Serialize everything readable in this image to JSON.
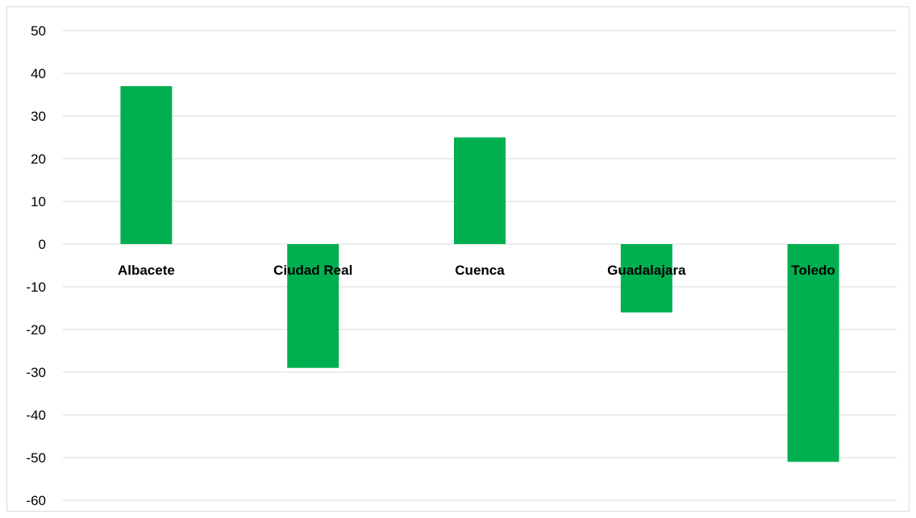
{
  "chart_data": {
    "type": "bar",
    "title": "",
    "xlabel": "",
    "ylabel": "",
    "categories": [
      "Albacete",
      "Ciudad Real",
      "Cuenca",
      "Guadalajara",
      "Toledo"
    ],
    "series": [
      {
        "values": [
          37,
          -29,
          25,
          -16,
          -51
        ],
        "color": "#00b050"
      }
    ],
    "ylim": [
      -60,
      50
    ],
    "yticks": [
      50,
      40,
      30,
      20,
      10,
      0,
      -10,
      -20,
      -30,
      -40,
      -50,
      -60
    ],
    "grid": true,
    "legend": "none",
    "category_labels_position": "at-zero-axis"
  }
}
